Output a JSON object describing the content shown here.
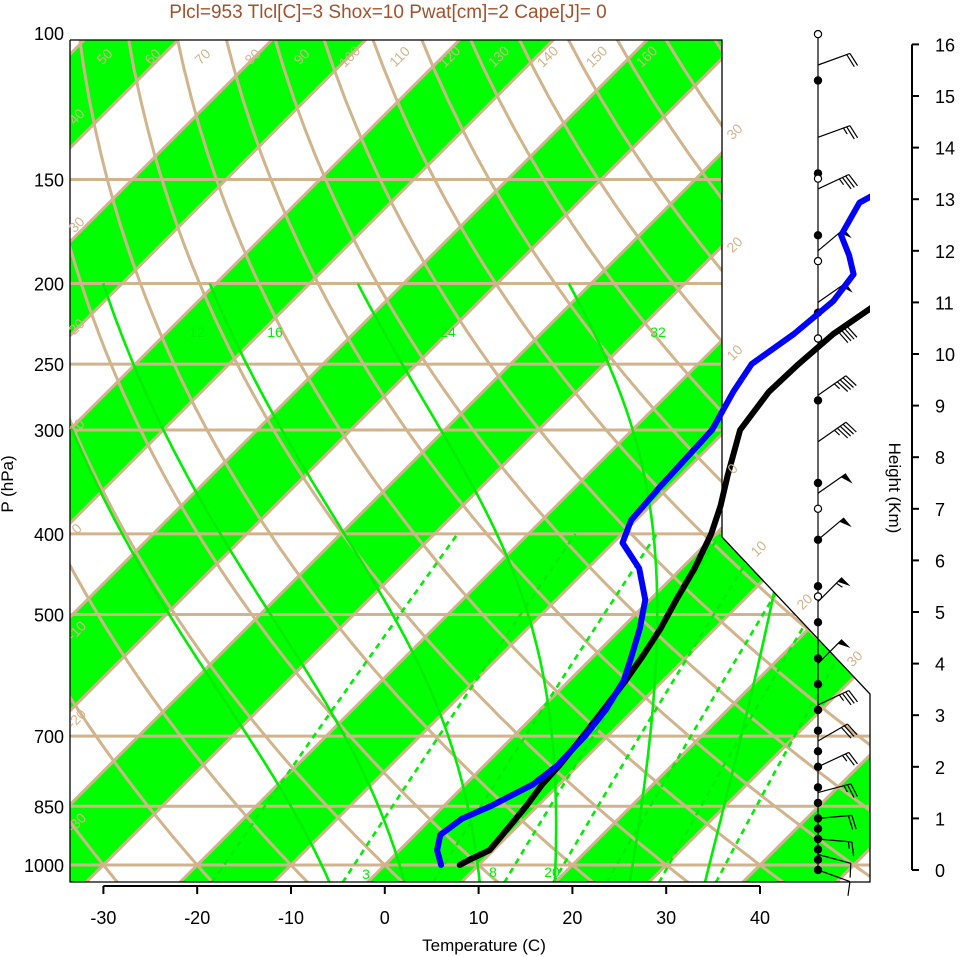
{
  "chart_data": {
    "type": "line",
    "subtype": "skew-t log-p sounding",
    "title": "Plcl=953 Tlcl[C]=3 Shox=10 Pwat[cm]=2 Cape[J]= 0",
    "xlabel": "Temperature (C)",
    "ylabel": "P (hPa)",
    "y2label": "Height (Km)",
    "xlim": [
      -35,
      45
    ],
    "ylim": [
      1050,
      100
    ],
    "y_scale": "log",
    "x_ticks": [
      -30,
      -20,
      -10,
      0,
      10,
      20,
      30,
      40
    ],
    "x_tick_labels": [
      "-30",
      "-20",
      "-10",
      "0",
      "10",
      "20",
      "30",
      "40"
    ],
    "pressure_ticks": [
      100,
      150,
      200,
      250,
      300,
      400,
      500,
      700,
      850,
      1000
    ],
    "pressure_tick_labels": [
      "100",
      "150",
      "200",
      "250",
      "300",
      "400",
      "500",
      "700",
      "850",
      "1000"
    ],
    "height_ticks": [
      0,
      1,
      2,
      3,
      4,
      5,
      6,
      7,
      8,
      9,
      10,
      11,
      12,
      13,
      14,
      15,
      16
    ],
    "height_tick_labels": [
      "0",
      "1",
      "2",
      "3",
      "4",
      "5",
      "6",
      "7",
      "8",
      "9",
      "10",
      "11",
      "12",
      "13",
      "14",
      "15",
      "16"
    ],
    "isotherm_labels": [
      "50",
      "60",
      "70",
      "80",
      "90",
      "100",
      "110",
      "120",
      "130",
      "140",
      "150",
      "160",
      "40",
      "30",
      "20",
      "10",
      "0",
      "-10",
      "-20",
      "-30",
      "30",
      "20",
      "10",
      "0",
      "10",
      "20",
      "30"
    ],
    "mixing_ratio_labels": [
      "12",
      "16",
      "24",
      "32",
      "3",
      "8",
      "20"
    ],
    "series": [
      {
        "name": "temperature",
        "color": "#000000",
        "points": [
          {
            "p": 1000,
            "t": 8
          },
          {
            "p": 985,
            "t": 8.5
          },
          {
            "p": 960,
            "t": 9.6
          },
          {
            "p": 930,
            "t": 9.4
          },
          {
            "p": 850,
            "t": 8.8
          },
          {
            "p": 800,
            "t": 8.2
          },
          {
            "p": 760,
            "t": 8.0
          },
          {
            "p": 700,
            "t": 7.4
          },
          {
            "p": 640,
            "t": 6.6
          },
          {
            "p": 600,
            "t": 6.0
          },
          {
            "p": 560,
            "t": 5.2
          },
          {
            "p": 520,
            "t": 4.2
          },
          {
            "p": 480,
            "t": 2.8
          },
          {
            "p": 440,
            "t": 1.4
          },
          {
            "p": 400,
            "t": -0.5
          },
          {
            "p": 370,
            "t": -2.5
          },
          {
            "p": 340,
            "t": -5.0
          },
          {
            "p": 300,
            "t": -8.5
          },
          {
            "p": 270,
            "t": -9.5
          },
          {
            "p": 250,
            "t": -9.3
          },
          {
            "p": 230,
            "t": -8.8
          },
          {
            "p": 210,
            "t": -7.2
          },
          {
            "p": 200,
            "t": -5.0
          },
          {
            "p": 188,
            "t": -1.0
          },
          {
            "p": 175,
            "t": 2.8
          },
          {
            "p": 160,
            "t": 6.2
          },
          {
            "p": 145,
            "t": 8.8
          },
          {
            "p": 130,
            "t": 11.5
          },
          {
            "p": 115,
            "t": 14.8
          },
          {
            "p": 100,
            "t": 18.0
          }
        ]
      },
      {
        "name": "dewpoint",
        "color": "#0000ff",
        "points": [
          {
            "p": 1000,
            "t": 6
          },
          {
            "p": 960,
            "t": 4.0
          },
          {
            "p": 920,
            "t": 2.7
          },
          {
            "p": 880,
            "t": 3.3
          },
          {
            "p": 850,
            "t": 5.0
          },
          {
            "p": 800,
            "t": 7.2
          },
          {
            "p": 760,
            "t": 7.8
          },
          {
            "p": 700,
            "t": 7.6
          },
          {
            "p": 650,
            "t": 7.0
          },
          {
            "p": 600,
            "t": 5.8
          },
          {
            "p": 560,
            "t": 4.0
          },
          {
            "p": 520,
            "t": 2.0
          },
          {
            "p": 480,
            "t": -0.5
          },
          {
            "p": 440,
            "t": -4.5
          },
          {
            "p": 410,
            "t": -9.0
          },
          {
            "p": 385,
            "t": -10.5
          },
          {
            "p": 350,
            "t": -11.0
          },
          {
            "p": 300,
            "t": -11.5
          },
          {
            "p": 270,
            "t": -13.3
          },
          {
            "p": 250,
            "t": -14.3
          },
          {
            "p": 230,
            "t": -13.0
          },
          {
            "p": 210,
            "t": -12.3
          },
          {
            "p": 195,
            "t": -13.0
          },
          {
            "p": 185,
            "t": -15.5
          },
          {
            "p": 175,
            "t": -18.5
          },
          {
            "p": 160,
            "t": -20.0
          },
          {
            "p": 145,
            "t": -17.0
          },
          {
            "p": 130,
            "t": -13.0
          },
          {
            "p": 115,
            "t": -8.5
          },
          {
            "p": 100,
            "t": -5.0
          }
        ]
      }
    ],
    "wind_profile": {
      "units": "knots",
      "barbs": [
        {
          "h": 0.0,
          "dir": 290,
          "spd": 10
        },
        {
          "h": 0.3,
          "dir": 285,
          "spd": 10
        },
        {
          "h": 0.6,
          "dir": 275,
          "spd": 15
        },
        {
          "h": 1.0,
          "dir": 265,
          "spd": 20
        },
        {
          "h": 1.5,
          "dir": 255,
          "spd": 25
        },
        {
          "h": 2.0,
          "dir": 245,
          "spd": 25
        },
        {
          "h": 2.5,
          "dir": 240,
          "spd": 30
        },
        {
          "h": 3.2,
          "dir": 245,
          "spd": 35
        },
        {
          "h": 4.0,
          "dir": 225,
          "spd": 50
        },
        {
          "h": 5.2,
          "dir": 225,
          "spd": 55
        },
        {
          "h": 6.4,
          "dir": 230,
          "spd": 50
        },
        {
          "h": 7.3,
          "dir": 235,
          "spd": 50
        },
        {
          "h": 8.3,
          "dir": 235,
          "spd": 45
        },
        {
          "h": 9.2,
          "dir": 235,
          "spd": 45
        },
        {
          "h": 10.2,
          "dir": 240,
          "spd": 40
        },
        {
          "h": 11.0,
          "dir": 235,
          "spd": 50
        },
        {
          "h": 12.0,
          "dir": 230,
          "spd": 55
        },
        {
          "h": 13.2,
          "dir": 245,
          "spd": 35
        },
        {
          "h": 14.2,
          "dir": 250,
          "spd": 25
        },
        {
          "h": 15.6,
          "dir": 250,
          "spd": 20
        }
      ],
      "dots_filled": [
        0,
        0.2,
        0.4,
        0.6,
        0.8,
        1.0,
        1.3,
        1.6,
        2.0,
        2.3,
        2.7,
        3.1,
        3.6,
        4.1,
        4.8,
        5.5,
        6.4,
        7.5,
        9.1,
        10.8,
        12.3,
        13.5,
        15.3
      ],
      "dots_open": [
        5.3,
        7.0,
        10.3,
        11.8,
        13.4,
        16.2
      ]
    },
    "colors": {
      "isotherm_band": "#00ff00",
      "reference_lines": "#d2b48c",
      "mixing_ratio": "#00ee00",
      "temperature": "#000000",
      "dewpoint": "#0000ff",
      "title": "#a0522d"
    }
  }
}
